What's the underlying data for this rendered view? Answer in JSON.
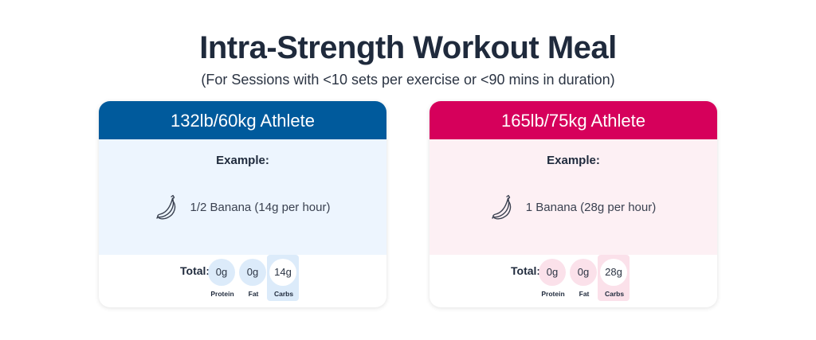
{
  "title": "Intra-Strength Workout Meal",
  "subtitle": "(For Sessions with <10 sets per exercise or <90 mins in duration)",
  "colors": {
    "left_accent": "#005a9c",
    "left_tint": "#edf5fe",
    "left_macro": "#dcebfa",
    "right_accent": "#d6005b",
    "right_tint": "#fdf0f4",
    "right_macro": "#fbe1ea"
  },
  "cards": [
    {
      "header": "132lb/60kg Athlete",
      "example_label": "Example:",
      "food_icon": "banana-icon",
      "food_text": "1/2 Banana (14g per hour)",
      "total_label": "Total:",
      "macros": [
        {
          "value": "0g",
          "label": "Protein"
        },
        {
          "value": "0g",
          "label": "Fat"
        },
        {
          "value": "14g",
          "label": "Carbs"
        }
      ]
    },
    {
      "header": "165lb/75kg Athlete",
      "example_label": "Example:",
      "food_icon": "banana-icon",
      "food_text": "1 Banana (28g per hour)",
      "total_label": "Total:",
      "macros": [
        {
          "value": "0g",
          "label": "Protein"
        },
        {
          "value": "0g",
          "label": "Fat"
        },
        {
          "value": "28g",
          "label": "Carbs"
        }
      ]
    }
  ]
}
